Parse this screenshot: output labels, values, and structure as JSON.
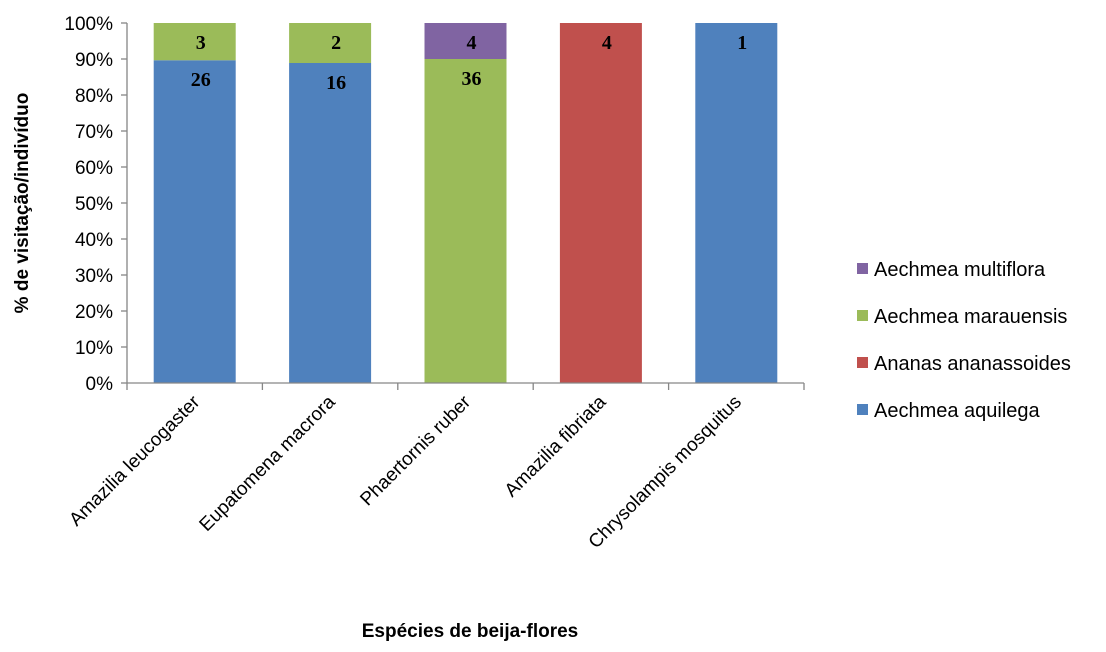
{
  "chart_data": {
    "type": "bar",
    "stacked": true,
    "percent_stacked": true,
    "xlabel": "Espécies de beija-flores",
    "ylabel": "% de visitação/indivíduo",
    "y_ticks": [
      "0%",
      "10%",
      "20%",
      "30%",
      "40%",
      "50%",
      "60%",
      "70%",
      "80%",
      "90%",
      "100%"
    ],
    "ylim": [
      0,
      100
    ],
    "categories": [
      "Amazilia leucogaster",
      "Eupatomena macrora",
      "Phaertornis ruber",
      "Amazilia fibriata",
      "Chrysolampis mosquitus"
    ],
    "series": [
      {
        "name": "Aechmea aquilega",
        "color": "#4F81BD",
        "values": [
          26,
          16,
          0,
          0,
          1
        ],
        "labels": [
          "26",
          "16",
          "",
          "",
          "1"
        ]
      },
      {
        "name": "Ananas ananassoides",
        "color": "#C0504D",
        "values": [
          0,
          0,
          0,
          4,
          0
        ],
        "labels": [
          "",
          "",
          "",
          "4",
          ""
        ]
      },
      {
        "name": "Aechmea marauensis",
        "color": "#9BBB59",
        "values": [
          3,
          2,
          36,
          0,
          0
        ],
        "labels": [
          "3",
          "2",
          "36",
          "",
          ""
        ]
      },
      {
        "name": "Aechmea multiflora",
        "color": "#8064A2",
        "values": [
          0,
          0,
          4,
          0,
          0
        ],
        "labels": [
          "",
          "",
          "4",
          "",
          ""
        ]
      }
    ],
    "legend_order": [
      "Aechmea multiflora",
      "Aechmea marauensis",
      "Ananas ananassoides",
      "Aechmea aquilega"
    ],
    "legend_position": "right",
    "grid": false
  }
}
